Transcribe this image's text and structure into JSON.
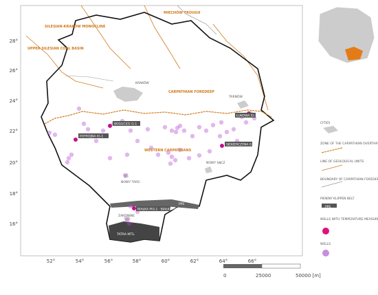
{
  "map": {
    "x_labels": [
      "52°",
      "54°",
      "56°",
      "58°",
      "60°",
      "62°",
      "64°",
      "66°"
    ],
    "y_labels": [
      "28°",
      "26°",
      "24°",
      "22°",
      "20°",
      "18°",
      "16°"
    ],
    "regions": [
      "SILESIAN-KRAKÓW MONOCLINE",
      "MIECHÓW TROUGH",
      "UPPER SILESIAN COAL BASIN",
      "CARPATHIAN FOREDEEP",
      "WESTERN CARPATHIANS",
      "PPS",
      "TATRA MTS."
    ],
    "cities": [
      "KRAKÓW",
      "TARNÓW",
      "NOWY SĄCZ",
      "NOWY TARG",
      "ZAKOPANE"
    ],
    "wells": [
      "POTRÓJNA IG-1",
      "BOGUCICE G-1",
      "SIEKIERCZYNA G-1",
      "ŁUKOWA IG-1",
      "BIAŁKA PIG-1 · BIAŁKA PIG-2"
    ]
  },
  "legend": [
    "CITIES",
    "ZONE OF THE CARPATHIAN OVERTHRUST",
    "LINE OF GEOLOGICAL UNITS",
    "BOUNDARY OF CARPATHIAN FOREDEEP",
    "PIENINY KLIPPEN BELT",
    "PPS",
    "WELLS WITH TEMPERATURE MEASUREMENT IN STABLE CONDITIONS",
    "WELLS"
  ],
  "scale": [
    "0",
    "25000",
    "50000 [m]"
  ]
}
